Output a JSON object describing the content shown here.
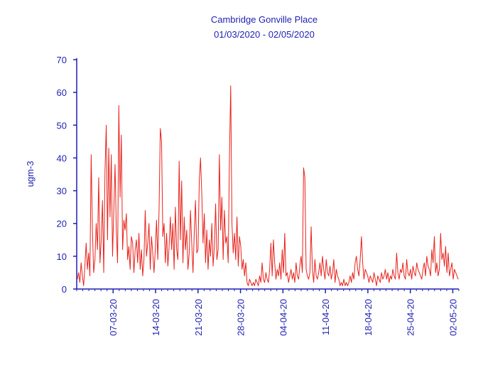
{
  "chart_data": {
    "type": "line",
    "title": "Cambridge Gonville Place",
    "subtitle": "01/03/2020 - 02/05/2020",
    "xlabel": "",
    "ylabel": "ugm-3",
    "ylim": [
      0,
      70
    ],
    "yticks": [
      0,
      10,
      20,
      30,
      40,
      50,
      60,
      70
    ],
    "xlim": [
      "2020-03-01",
      "2020-05-03"
    ],
    "xtick_labels": [
      "07-03-20",
      "14-03-20",
      "21-03-20",
      "28-03-20",
      "04-04-20",
      "11-04-20",
      "18-04-20",
      "25-04-20",
      "02-05-20"
    ],
    "xtick_dates": [
      "2020-03-07",
      "2020-03-14",
      "2020-03-21",
      "2020-03-28",
      "2020-04-04",
      "2020-04-11",
      "2020-04-18",
      "2020-04-25",
      "2020-05-02"
    ],
    "grid": false,
    "legend": "none",
    "series_color": "#e8221b",
    "axis_color": "#1f1fb4",
    "series": [
      {
        "interval": "3h",
        "values": [
          3,
          5,
          2,
          8,
          4,
          1,
          7,
          14,
          6,
          11,
          4,
          41,
          18,
          5,
          9,
          20,
          12,
          34,
          8,
          15,
          27,
          5,
          36,
          50,
          15,
          43,
          22,
          41,
          10,
          24,
          38,
          18,
          8,
          56,
          28,
          47,
          12,
          21,
          18,
          23,
          9,
          13,
          6,
          16,
          14,
          5,
          12,
          15,
          8,
          17,
          6,
          12,
          4,
          9,
          24,
          10,
          14,
          20,
          6,
          16,
          11,
          5,
          12,
          21,
          9,
          24,
          49,
          45,
          16,
          20,
          8,
          17,
          7,
          13,
          22,
          12,
          20,
          6,
          25,
          12,
          9,
          39,
          15,
          33,
          8,
          22,
          12,
          18,
          6,
          11,
          24,
          14,
          5,
          17,
          27,
          11,
          12,
          33,
          40,
          29,
          14,
          23,
          8,
          18,
          6,
          15,
          10,
          20,
          7,
          13,
          26,
          9,
          12,
          41,
          18,
          28,
          9,
          24,
          14,
          16,
          8,
          40,
          62,
          20,
          11,
          17,
          9,
          22,
          7,
          16,
          13,
          6,
          9,
          4,
          8,
          2,
          1,
          3,
          2,
          1,
          2,
          1,
          3,
          2,
          1,
          4,
          2,
          8,
          3,
          2,
          5,
          3,
          2,
          6,
          14,
          4,
          15,
          8,
          3,
          6,
          4,
          8,
          3,
          12,
          5,
          17,
          4,
          5,
          2,
          4,
          6,
          3,
          5,
          2,
          8,
          4,
          3,
          7,
          10,
          5,
          37,
          34,
          6,
          4,
          3,
          5,
          19,
          6,
          2,
          9,
          4,
          3,
          5,
          8,
          4,
          10,
          6,
          3,
          9,
          5,
          4,
          7,
          3,
          5,
          9,
          2,
          6,
          4,
          3,
          1,
          2,
          1,
          3,
          1,
          2,
          1,
          2,
          4,
          2,
          5,
          3,
          8,
          10,
          6,
          4,
          9,
          16,
          8,
          3,
          6,
          5,
          4,
          2,
          4,
          3,
          2,
          5,
          3,
          1,
          4,
          3,
          2,
          5,
          3,
          4,
          6,
          3,
          5,
          2,
          4,
          3,
          6,
          4,
          3,
          11,
          5,
          3,
          6,
          5,
          8,
          4,
          3,
          9,
          5,
          4,
          6,
          3,
          7,
          5,
          4,
          8,
          6,
          5,
          4,
          3,
          6,
          8,
          4,
          10,
          7,
          6,
          4,
          12,
          8,
          16,
          5,
          8,
          4,
          6,
          17,
          9,
          11,
          7,
          13,
          5,
          11,
          4,
          6,
          8,
          3,
          6,
          5,
          4,
          3
        ]
      }
    ]
  }
}
